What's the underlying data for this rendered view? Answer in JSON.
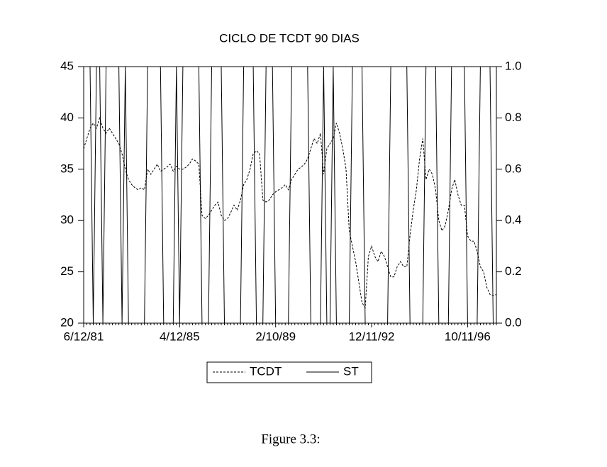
{
  "chart_data": {
    "type": "line",
    "title": "CICLO DE TCDT 90 DIAS",
    "categories": [
      "6/12/81",
      null,
      null,
      null,
      null,
      null,
      null,
      null,
      null,
      null,
      null,
      null,
      null,
      null,
      null,
      null,
      null,
      null,
      null,
      null,
      null,
      null,
      null,
      null,
      null,
      null,
      null,
      null,
      null,
      null,
      "4/12/85",
      null,
      null,
      null,
      null,
      null,
      null,
      null,
      null,
      null,
      null,
      null,
      null,
      null,
      null,
      null,
      null,
      null,
      null,
      null,
      null,
      null,
      null,
      null,
      null,
      null,
      null,
      null,
      null,
      null,
      "2/10/89",
      null,
      null,
      null,
      null,
      null,
      null,
      null,
      null,
      null,
      null,
      null,
      null,
      null,
      null,
      null,
      null,
      null,
      null,
      null,
      null,
      null,
      null,
      null,
      null,
      null,
      null,
      null,
      null,
      null,
      "12/11/92",
      null,
      null,
      null,
      null,
      null,
      null,
      null,
      null,
      null,
      null,
      null,
      null,
      null,
      null,
      null,
      null,
      null,
      null,
      null,
      null,
      null,
      null,
      null,
      null,
      null,
      null,
      null,
      null,
      null,
      "10/11/96",
      null,
      null,
      null,
      null,
      null,
      null,
      null,
      null,
      null
    ],
    "series": [
      {
        "name": "TCDT",
        "color": "#000000",
        "dash": true,
        "values": [
          37,
          38,
          39,
          39.5,
          39,
          40,
          39,
          38.5,
          39,
          38.5,
          38,
          37.5,
          36.5,
          35,
          34,
          33.5,
          33.2,
          33,
          33.2,
          33,
          35,
          34.5,
          35,
          35.5,
          34.8,
          35,
          35.2,
          35.5,
          34.8,
          35.3,
          35,
          35,
          35.2,
          35.5,
          36,
          35.8,
          35.5,
          30.5,
          30.2,
          30.5,
          31,
          31.5,
          31.8,
          30.5,
          30,
          30.2,
          30.8,
          31.5,
          31,
          32,
          33.5,
          34,
          35,
          36.5,
          36.8,
          36.5,
          32,
          31.8,
          32,
          32.5,
          32.8,
          33,
          33.2,
          33.5,
          33,
          34,
          34.5,
          35,
          35.2,
          35.5,
          36,
          37,
          38,
          37.5,
          38.5,
          34.5,
          37,
          37.5,
          38,
          39.5,
          38.5,
          37,
          35,
          29,
          27.5,
          26,
          24,
          22,
          21.5,
          26.5,
          27.5,
          26.5,
          26,
          27,
          26.5,
          25.5,
          24.5,
          24.5,
          25.5,
          26,
          25.5,
          25.5,
          28.5,
          31,
          33,
          36,
          38,
          34,
          35,
          34.5,
          33,
          30,
          29,
          29.5,
          31,
          33,
          34,
          32.5,
          31.5,
          31.5,
          28.5,
          28,
          28,
          27,
          25.5,
          25,
          23.5,
          22.8,
          22.7,
          22.8
        ]
      },
      {
        "name": "ST",
        "color": "#000000",
        "dash": false,
        "axis": "y2",
        "values": [
          1,
          1,
          1,
          0,
          1,
          1,
          0,
          1,
          1,
          1,
          1,
          1,
          0,
          1,
          0,
          0,
          0,
          0,
          0,
          0,
          1,
          1,
          1,
          1,
          1,
          0,
          0,
          0,
          0,
          1,
          0,
          1,
          1,
          1,
          1,
          1,
          1,
          0,
          0,
          0,
          1,
          1,
          1,
          1,
          0,
          0,
          0,
          0,
          0,
          0,
          1,
          1,
          1,
          1,
          0,
          0,
          0,
          1,
          1,
          1,
          0,
          0,
          0,
          0,
          0,
          1,
          1,
          1,
          1,
          1,
          1,
          0,
          0,
          0,
          0,
          1,
          0,
          0,
          1,
          0,
          0,
          0,
          0,
          0,
          1,
          1,
          1,
          1,
          0,
          0,
          0,
          0,
          0,
          0,
          0,
          0,
          1,
          1,
          1,
          1,
          1,
          1,
          0,
          0,
          0,
          0,
          0,
          1,
          1,
          1,
          1,
          0,
          0,
          0,
          0,
          1,
          1,
          1,
          1,
          1,
          0,
          0,
          0,
          0,
          1,
          1,
          1,
          1,
          0,
          0
        ]
      }
    ],
    "ylim": [
      20,
      45
    ],
    "yticks": [
      20,
      25,
      30,
      35,
      40,
      45
    ],
    "y2lim": [
      0,
      1
    ],
    "y2ticks": [
      {
        "value": 0,
        "label": "0.0"
      },
      {
        "value": 0.2,
        "label": "0.2"
      },
      {
        "value": 0.4,
        "label": "0.4"
      },
      {
        "value": 0.6,
        "label": "0.6"
      },
      {
        "value": 0.8,
        "label": "0.8"
      },
      {
        "value": 1,
        "label": "1.0"
      }
    ],
    "grid": false,
    "legend": "bottom"
  },
  "caption": "Figure 3.3:"
}
